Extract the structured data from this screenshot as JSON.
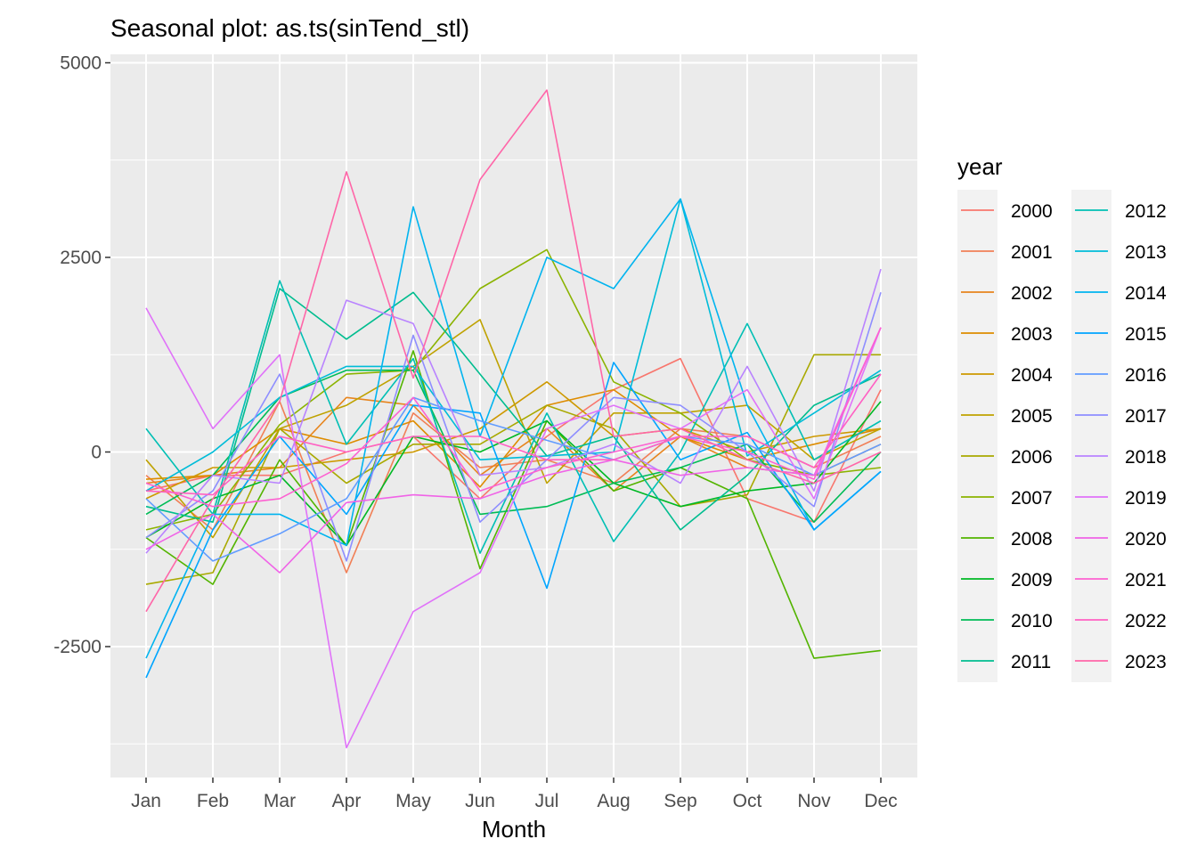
{
  "chart_data": {
    "type": "line",
    "title": "Seasonal plot: as.ts(sinTend_stl)",
    "xlabel": "Month",
    "ylabel": "",
    "categories": [
      "Jan",
      "Feb",
      "Mar",
      "Apr",
      "May",
      "Jun",
      "Jul",
      "Aug",
      "Sep",
      "Oct",
      "Nov",
      "Dec"
    ],
    "ylim": [
      -4200,
      5000
    ],
    "yticks": [
      5000,
      2500,
      0,
      -2500
    ],
    "ytick_labels": [
      "5000",
      "2500",
      "0",
      "-2500"
    ],
    "grid": true,
    "legend_title": "year",
    "legend_position": "right",
    "series": [
      {
        "name": "2000",
        "color": "#F8766D",
        "values": [
          -500,
          -300,
          -300,
          0,
          200,
          -600,
          200,
          800,
          1200,
          -600,
          -900,
          800
        ]
      },
      {
        "name": "2001",
        "color": "#F17F56",
        "values": [
          -300,
          -1000,
          650,
          -1550,
          500,
          -200,
          -100,
          -400,
          300,
          200,
          -200,
          200
        ]
      },
      {
        "name": "2002",
        "color": "#E7851E",
        "values": [
          -400,
          -300,
          -200,
          700,
          600,
          -300,
          300,
          -500,
          200,
          -200,
          -300,
          100
        ]
      },
      {
        "name": "2003",
        "color": "#DE8C00",
        "values": [
          -350,
          -300,
          300,
          100,
          400,
          -450,
          600,
          800,
          200,
          -100,
          100,
          300
        ]
      },
      {
        "name": "2004",
        "color": "#CE9900",
        "values": [
          -600,
          -200,
          -200,
          -100,
          0,
          300,
          900,
          200,
          300,
          0,
          200,
          300
        ]
      },
      {
        "name": "2005",
        "color": "#BFA200",
        "values": [
          -100,
          -1100,
          300,
          600,
          1100,
          1700,
          -400,
          500,
          500,
          600,
          -100,
          300
        ]
      },
      {
        "name": "2006",
        "color": "#A9A900",
        "values": [
          -1700,
          -1550,
          300,
          -400,
          100,
          100,
          600,
          300,
          -700,
          -550,
          1250,
          1250
        ]
      },
      {
        "name": "2007",
        "color": "#8BB300",
        "values": [
          -1000,
          -800,
          350,
          1000,
          1050,
          2100,
          2600,
          900,
          500,
          -100,
          -300,
          -200
        ]
      },
      {
        "name": "2008",
        "color": "#53B400",
        "values": [
          -1100,
          -1700,
          -100,
          -1200,
          1300,
          -1500,
          400,
          -500,
          -200,
          -600,
          -2650,
          -2550
        ]
      },
      {
        "name": "2009",
        "color": "#00B824",
        "values": [
          -1100,
          -600,
          -300,
          -1200,
          200,
          0,
          400,
          -400,
          -700,
          -500,
          -400,
          650
        ]
      },
      {
        "name": "2010",
        "color": "#00BC56",
        "values": [
          -800,
          -300,
          700,
          1050,
          1050,
          -800,
          -700,
          -400,
          -200,
          100,
          -900,
          0
        ]
      },
      {
        "name": "2011",
        "color": "#00BD8F",
        "values": [
          -700,
          -900,
          2100,
          1450,
          2050,
          1000,
          -50,
          200,
          -1000,
          -300,
          600,
          1000
        ]
      },
      {
        "name": "2012",
        "color": "#00BFB4",
        "values": [
          300,
          -800,
          2200,
          100,
          1200,
          -1300,
          500,
          -1150,
          0,
          1650,
          -100,
          400
        ]
      },
      {
        "name": "2013",
        "color": "#00BCD8",
        "values": [
          -500,
          0,
          700,
          1100,
          1100,
          -100,
          -50,
          0,
          3250,
          -50,
          500,
          1050
        ]
      },
      {
        "name": "2014",
        "color": "#00B4EF",
        "values": [
          -2650,
          -800,
          -800,
          -1200,
          3150,
          200,
          2500,
          2100,
          3250,
          600,
          -1000,
          -250
        ]
      },
      {
        "name": "2015",
        "color": "#00A5FF",
        "values": [
          -2900,
          -1000,
          200,
          -800,
          600,
          500,
          -1750,
          1150,
          -100,
          250,
          -1000,
          -250
        ]
      },
      {
        "name": "2016",
        "color": "#619CFF",
        "values": [
          -600,
          -1400,
          -1050,
          -600,
          700,
          400,
          150,
          -100,
          200,
          100,
          -300,
          100
        ]
      },
      {
        "name": "2017",
        "color": "#8E8EFF",
        "values": [
          -1100,
          -500,
          1000,
          -1400,
          1500,
          -900,
          -100,
          700,
          600,
          0,
          -700,
          2050
        ]
      },
      {
        "name": "2018",
        "color": "#B983FF",
        "values": [
          -1300,
          -300,
          -400,
          1950,
          1650,
          -300,
          -200,
          100,
          -400,
          1100,
          -500,
          2350
        ]
      },
      {
        "name": "2019",
        "color": "#E072F9",
        "values": [
          1850,
          300,
          1250,
          -3800,
          -2050,
          -1550,
          300,
          600,
          300,
          800,
          -600,
          1600
        ]
      },
      {
        "name": "2020",
        "color": "#F063E7",
        "values": [
          -1250,
          -800,
          -1550,
          -650,
          -550,
          -600,
          -300,
          -100,
          -300,
          -200,
          -300,
          1600
        ]
      },
      {
        "name": "2021",
        "color": "#FD61D1",
        "values": [
          -400,
          -700,
          -600,
          -150,
          700,
          -500,
          -200,
          0,
          200,
          0,
          -350,
          1600
        ]
      },
      {
        "name": "2022",
        "color": "#FF61C3",
        "values": [
          -500,
          -550,
          200,
          0,
          200,
          200,
          -100,
          -100,
          200,
          200,
          -200,
          1000
        ]
      },
      {
        "name": "2023",
        "color": "#FF66A8",
        "values": [
          -2050,
          -600,
          650,
          3600,
          950,
          3500,
          4650,
          200,
          300,
          -100,
          -400,
          0
        ]
      }
    ]
  }
}
